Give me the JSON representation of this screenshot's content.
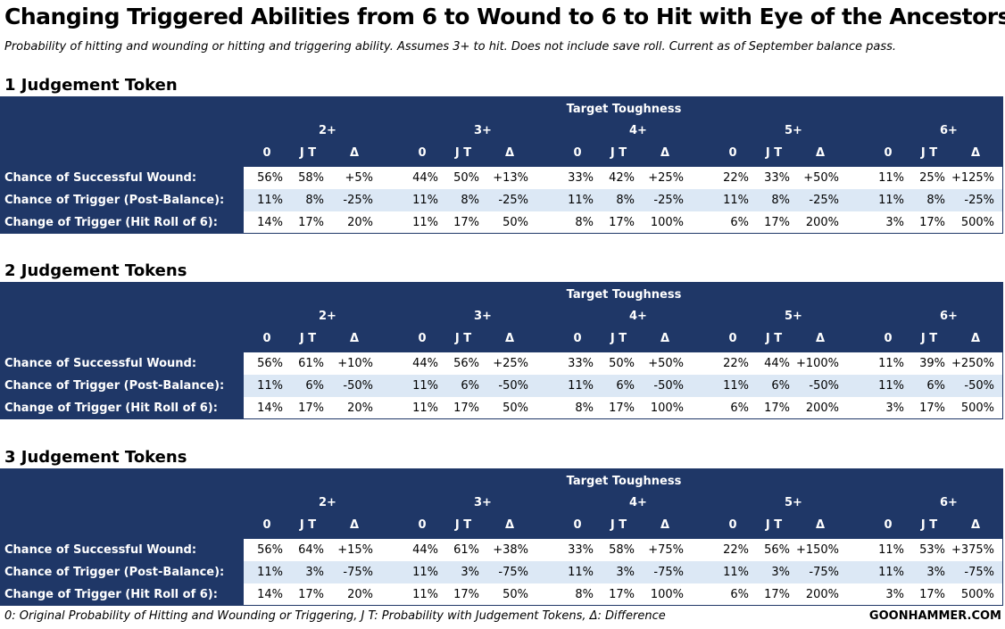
{
  "title": "Changing Triggered Abilities from 6 to Wound to 6 to Hit with Eye of the Ancestors",
  "subtitle": "Probability of hitting and wounding or hitting and triggering ability. Assumes 3+ to hit. Does not include save roll. Current as of September balance pass.",
  "header": {
    "group_label": "Target Toughness",
    "toughness": [
      "2+",
      "3+",
      "4+",
      "5+",
      "6+"
    ],
    "sub_labels": [
      "0",
      "J T",
      "Δ"
    ]
  },
  "row_labels": [
    "Chance of Successful Wound:",
    "Chance of Trigger (Post-Balance):",
    "Change of Trigger (Hit Roll of 6):"
  ],
  "footer": {
    "legend": "0: Original Probability of Hitting and Wounding or Triggering, J T: Probability with Judgement Tokens,  Δ: Difference",
    "brand": "GOONHAMMER.COM"
  },
  "chart_data": [
    {
      "type": "table",
      "title": "1 Judgement Token",
      "rows": [
        [
          "56%",
          "58%",
          "+5%",
          "44%",
          "50%",
          "+13%",
          "33%",
          "42%",
          "+25%",
          "22%",
          "33%",
          "+50%",
          "11%",
          "25%",
          "+125%"
        ],
        [
          "11%",
          "8%",
          "-25%",
          "11%",
          "8%",
          "-25%",
          "11%",
          "8%",
          "-25%",
          "11%",
          "8%",
          "-25%",
          "11%",
          "8%",
          "-25%"
        ],
        [
          "14%",
          "17%",
          "20%",
          "11%",
          "17%",
          "50%",
          "8%",
          "17%",
          "100%",
          "6%",
          "17%",
          "200%",
          "3%",
          "17%",
          "500%"
        ]
      ]
    },
    {
      "type": "table",
      "title": "2 Judgement Tokens",
      "rows": [
        [
          "56%",
          "61%",
          "+10%",
          "44%",
          "56%",
          "+25%",
          "33%",
          "50%",
          "+50%",
          "22%",
          "44%",
          "+100%",
          "11%",
          "39%",
          "+250%"
        ],
        [
          "11%",
          "6%",
          "-50%",
          "11%",
          "6%",
          "-50%",
          "11%",
          "6%",
          "-50%",
          "11%",
          "6%",
          "-50%",
          "11%",
          "6%",
          "-50%"
        ],
        [
          "14%",
          "17%",
          "20%",
          "11%",
          "17%",
          "50%",
          "8%",
          "17%",
          "100%",
          "6%",
          "17%",
          "200%",
          "3%",
          "17%",
          "500%"
        ]
      ]
    },
    {
      "type": "table",
      "title": "3 Judgement Tokens",
      "rows": [
        [
          "56%",
          "64%",
          "+15%",
          "44%",
          "61%",
          "+38%",
          "33%",
          "58%",
          "+75%",
          "22%",
          "56%",
          "+150%",
          "11%",
          "53%",
          "+375%"
        ],
        [
          "11%",
          "3%",
          "-75%",
          "11%",
          "3%",
          "-75%",
          "11%",
          "3%",
          "-75%",
          "11%",
          "3%",
          "-75%",
          "11%",
          "3%",
          "-75%"
        ],
        [
          "14%",
          "17%",
          "20%",
          "11%",
          "17%",
          "50%",
          "8%",
          "17%",
          "100%",
          "6%",
          "17%",
          "200%",
          "3%",
          "17%",
          "500%"
        ]
      ]
    }
  ]
}
